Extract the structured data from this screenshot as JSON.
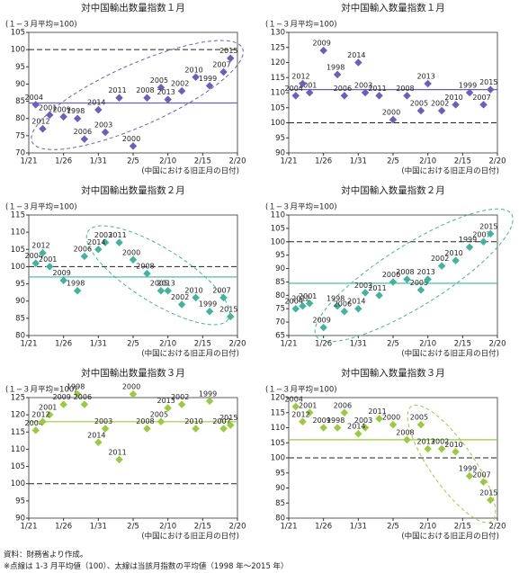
{
  "chart_data": [
    {
      "type": "scatter",
      "title": "対中国輸出数量指数１月",
      "y_unit_label": "(１−３月平均=100)",
      "xlabel": "(中国における旧正月の日付)",
      "xlim": [
        21,
        51
      ],
      "xticks": [
        {
          "value": 21,
          "label": "1/21"
        },
        {
          "value": 26,
          "label": "1/26"
        },
        {
          "value": 31,
          "label": "1/31"
        },
        {
          "value": 36,
          "label": "2/5"
        },
        {
          "value": 41,
          "label": "2/10"
        },
        {
          "value": 46,
          "label": "2/15"
        },
        {
          "value": 51,
          "label": "2/20"
        }
      ],
      "ylim": [
        70,
        105
      ],
      "yticks": [
        70,
        75,
        80,
        85,
        90,
        95,
        100,
        105
      ],
      "reference_line": 100,
      "mean_line": 84.5,
      "color": "#6a5fc1",
      "labels": [
        "1998",
        "1999",
        "2000",
        "2001",
        "2002",
        "2003",
        "2004",
        "2005",
        "2006",
        "2007",
        "2008",
        "2009",
        "2010",
        "2011",
        "2012",
        "2013",
        "2014",
        "2015"
      ],
      "x": [
        28,
        47,
        36,
        24,
        43,
        32,
        22,
        40,
        29,
        49,
        38,
        26,
        45,
        34,
        23,
        41,
        31,
        50
      ],
      "y": [
        80,
        89.5,
        72,
        81,
        88,
        76,
        84,
        89,
        74,
        93.5,
        86,
        80.5,
        92,
        86,
        77,
        85.5,
        82.5,
        97.5
      ]
    },
    {
      "type": "scatter",
      "title": "対中国輸入数量指数１月",
      "y_unit_label": "(１−３月平均=100)",
      "xlabel": "(中国における旧正月の日付)",
      "xlim": [
        21,
        51
      ],
      "xticks": [
        {
          "value": 21,
          "label": "1/21"
        },
        {
          "value": 26,
          "label": "1/26"
        },
        {
          "value": 31,
          "label": "1/31"
        },
        {
          "value": 36,
          "label": "2/5"
        },
        {
          "value": 41,
          "label": "2/10"
        },
        {
          "value": 46,
          "label": "2/15"
        },
        {
          "value": 51,
          "label": "2/20"
        }
      ],
      "ylim": [
        90,
        130
      ],
      "yticks": [
        90,
        95,
        100,
        105,
        110,
        115,
        120,
        125,
        130
      ],
      "reference_line": 100,
      "mean_line": 111,
      "color": "#6a5fc1",
      "labels": [
        "1998",
        "1999",
        "2000",
        "2001",
        "2002",
        "2003",
        "2004",
        "2005",
        "2006",
        "2007",
        "2008",
        "2009",
        "2010",
        "2011",
        "2012",
        "2013",
        "2014",
        "2015"
      ],
      "x": [
        28,
        47,
        36,
        24,
        43,
        32,
        22,
        40,
        29,
        49,
        38,
        26,
        45,
        34,
        23,
        41,
        31,
        50
      ],
      "y": [
        116,
        110,
        101,
        110,
        104,
        110,
        109,
        104,
        109,
        106,
        109,
        124,
        106,
        109,
        113,
        113,
        120,
        111
      ]
    },
    {
      "type": "scatter",
      "title": "対中国輸出数量指数２月",
      "y_unit_label": "(１−３月平均=100)",
      "xlabel": "(中国における旧正月の日付)",
      "xlim": [
        21,
        51
      ],
      "xticks": [
        {
          "value": 21,
          "label": "1/21"
        },
        {
          "value": 26,
          "label": "1/26"
        },
        {
          "value": 31,
          "label": "1/31"
        },
        {
          "value": 36,
          "label": "2/5"
        },
        {
          "value": 41,
          "label": "2/10"
        },
        {
          "value": 46,
          "label": "2/15"
        },
        {
          "value": 51,
          "label": "2/20"
        }
      ],
      "ylim": [
        80,
        115
      ],
      "yticks": [
        80,
        85,
        90,
        95,
        100,
        105,
        110,
        115
      ],
      "reference_line": 100,
      "mean_line": 97,
      "color": "#3fb59c",
      "labels": [
        "1998",
        "1999",
        "2000",
        "2001",
        "2002",
        "2003",
        "2004",
        "2005",
        "2006",
        "2007",
        "2008",
        "2009",
        "2010",
        "2011",
        "2012",
        "2013",
        "2014",
        "2015"
      ],
      "x": [
        28,
        47,
        36,
        24,
        43,
        32,
        22,
        40,
        29,
        49,
        38,
        26,
        45,
        34,
        23,
        41,
        31,
        50
      ],
      "y": [
        93,
        87,
        102,
        100,
        89,
        107,
        101,
        93,
        103,
        91,
        98,
        96,
        91,
        107,
        104,
        93,
        105,
        85.5
      ]
    },
    {
      "type": "scatter",
      "title": "対中国輸入数量指数２月",
      "y_unit_label": "(１−３月平均=100)",
      "xlabel": "(中国における旧正月の日付)",
      "xlim": [
        21,
        51
      ],
      "xticks": [
        {
          "value": 21,
          "label": "1/21"
        },
        {
          "value": 26,
          "label": "1/26"
        },
        {
          "value": 31,
          "label": "1/31"
        },
        {
          "value": 36,
          "label": "2/5"
        },
        {
          "value": 41,
          "label": "2/10"
        },
        {
          "value": 46,
          "label": "2/15"
        },
        {
          "value": 51,
          "label": "2/20"
        }
      ],
      "ylim": [
        65,
        110
      ],
      "yticks": [
        65,
        70,
        75,
        80,
        85,
        90,
        95,
        100,
        105,
        110
      ],
      "reference_line": 100,
      "mean_line": 84.5,
      "color": "#3fb59c",
      "labels": [
        "1998",
        "1999",
        "2000",
        "2001",
        "2002",
        "2003",
        "2004",
        "2005",
        "2006",
        "2007",
        "2008",
        "2009",
        "2010",
        "2011",
        "2012",
        "2013",
        "2014",
        "2015"
      ],
      "x": [
        28,
        47,
        36,
        24,
        43,
        32,
        22,
        40,
        29,
        49,
        38,
        26,
        45,
        34,
        23,
        41,
        31,
        50
      ],
      "y": [
        76,
        98,
        85,
        77,
        91,
        81,
        75,
        82,
        74,
        100,
        86,
        68,
        93,
        80,
        76,
        86,
        75,
        103
      ]
    },
    {
      "type": "scatter",
      "title": "対中国輸出数量指数３月",
      "y_unit_label": "(１−３月平均=100)",
      "xlabel": "(中国における旧正月の日付)",
      "xlim": [
        21,
        51
      ],
      "xticks": [
        {
          "value": 21,
          "label": "1/21"
        },
        {
          "value": 26,
          "label": "1/26"
        },
        {
          "value": 31,
          "label": "1/31"
        },
        {
          "value": 36,
          "label": "2/5"
        },
        {
          "value": 41,
          "label": "2/10"
        },
        {
          "value": 46,
          "label": "2/15"
        },
        {
          "value": 51,
          "label": "2/20"
        }
      ],
      "ylim": [
        90,
        125
      ],
      "yticks": [
        90,
        95,
        100,
        105,
        110,
        115,
        120,
        125
      ],
      "reference_line": 100,
      "mean_line": 118,
      "color": "#9acb3c",
      "labels": [
        "1998",
        "1999",
        "2000",
        "2001",
        "2002",
        "2003",
        "2004",
        "2005",
        "2006",
        "2007",
        "2008",
        "2009",
        "2010",
        "2011",
        "2012",
        "2013",
        "2014",
        "2015"
      ],
      "x": [
        28,
        47,
        36,
        24,
        43,
        32,
        22,
        40,
        29,
        49,
        38,
        26,
        45,
        34,
        23,
        41,
        31,
        50
      ],
      "y": [
        126,
        124,
        126,
        120,
        123,
        116,
        115.5,
        118,
        123,
        116,
        116,
        123,
        116,
        107,
        118,
        122,
        112,
        117
      ]
    },
    {
      "type": "scatter",
      "title": "対中国輸入数量指数３月",
      "y_unit_label": "(１−３月平均=100)",
      "xlabel": "(中国における旧正月の日付)",
      "xlim": [
        21,
        51
      ],
      "xticks": [
        {
          "value": 21,
          "label": "1/21"
        },
        {
          "value": 26,
          "label": "1/26"
        },
        {
          "value": 31,
          "label": "1/31"
        },
        {
          "value": 36,
          "label": "2/5"
        },
        {
          "value": 41,
          "label": "2/10"
        },
        {
          "value": 46,
          "label": "2/15"
        },
        {
          "value": 51,
          "label": "2/20"
        }
      ],
      "ylim": [
        80,
        120
      ],
      "yticks": [
        80,
        85,
        90,
        95,
        100,
        105,
        110,
        115,
        120
      ],
      "reference_line": 100,
      "mean_line": 106,
      "color": "#9acb3c",
      "labels": [
        "1998",
        "1999",
        "2000",
        "2001",
        "2002",
        "2003",
        "2004",
        "2005",
        "2006",
        "2007",
        "2008",
        "2009",
        "2010",
        "2011",
        "2012",
        "2013",
        "2014",
        "2015"
      ],
      "x": [
        28,
        47,
        36,
        24,
        43,
        32,
        22,
        40,
        29,
        49,
        38,
        26,
        45,
        34,
        23,
        41,
        31,
        50
      ],
      "y": [
        110,
        94,
        111,
        115,
        103,
        110,
        117,
        111,
        115,
        92,
        106,
        110,
        102,
        113,
        112,
        103,
        108,
        86
      ]
    }
  ],
  "source": "資料：財務省より作成。",
  "note": "※点線は 1-3 月平均値（100）、太線は当該月指数の平均値（1998 年〜2015 年）"
}
